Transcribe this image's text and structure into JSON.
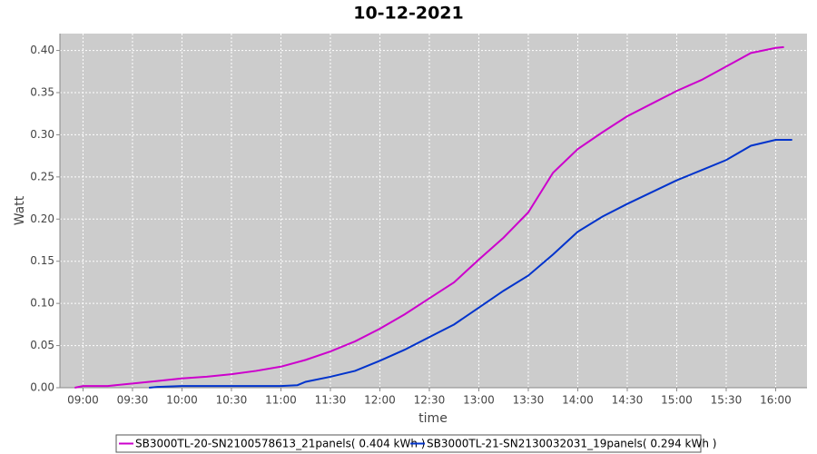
{
  "chart_data": {
    "type": "line",
    "title": "10-12-2021",
    "x_label": "time",
    "y_label": "Watt",
    "xlim": [
      "08:46",
      "16:19"
    ],
    "xticks": [
      "09:00",
      "09:30",
      "10:00",
      "10:30",
      "11:00",
      "11:30",
      "12:00",
      "12:30",
      "13:00",
      "13:30",
      "14:00",
      "14:30",
      "15:00",
      "15:30",
      "16:00"
    ],
    "ylim": [
      0,
      0.42
    ],
    "yticks": [
      {
        "value": 0,
        "label": "0.00"
      },
      {
        "value": 0.05,
        "label": "0.05"
      },
      {
        "value": 0.1,
        "label": "0.10"
      },
      {
        "value": 0.15,
        "label": "0.15"
      },
      {
        "value": 0.2,
        "label": "0.20"
      },
      {
        "value": 0.25,
        "label": "0.25"
      },
      {
        "value": 0.3,
        "label": "0.30"
      },
      {
        "value": 0.35,
        "label": "0.35"
      },
      {
        "value": 0.4,
        "label": "0.40"
      }
    ],
    "grid": true,
    "series": [
      {
        "name": "SB3000TL-20-SN2100578613_21panels( 0.404 kWh )",
        "color": "#cc00cc",
        "x": [
          "08:55",
          "09:00",
          "09:15",
          "09:30",
          "09:45",
          "10:00",
          "10:15",
          "10:30",
          "10:45",
          "11:00",
          "11:15",
          "11:30",
          "11:45",
          "12:00",
          "12:15",
          "12:30",
          "12:45",
          "13:00",
          "13:15",
          "13:30",
          "13:45",
          "14:00",
          "14:15",
          "14:30",
          "14:45",
          "15:00",
          "15:15",
          "15:30",
          "15:45",
          "16:00",
          "16:05"
        ],
        "values": [
          0,
          0.002,
          0.002,
          0.005,
          0.008,
          0.011,
          0.013,
          0.016,
          0.02,
          0.025,
          0.033,
          0.043,
          0.055,
          0.07,
          0.087,
          0.106,
          0.125,
          0.152,
          0.178,
          0.208,
          0.255,
          0.283,
          0.303,
          0.322,
          0.337,
          0.352,
          0.365,
          0.381,
          0.397,
          0.403,
          0.404
        ]
      },
      {
        "name": "SB3000TL-21-SN2130032031_19panels( 0.294 kWh )",
        "color": "#0033cc",
        "x": [
          "09:40",
          "09:45",
          "10:00",
          "10:30",
          "11:00",
          "11:10",
          "11:15",
          "11:30",
          "11:45",
          "12:00",
          "12:15",
          "12:30",
          "12:45",
          "13:00",
          "13:15",
          "13:30",
          "13:45",
          "14:00",
          "14:15",
          "14:30",
          "14:45",
          "15:00",
          "15:15",
          "15:30",
          "15:45",
          "16:00",
          "16:10"
        ],
        "values": [
          0,
          0.001,
          0.002,
          0.002,
          0.002,
          0.003,
          0.007,
          0.013,
          0.02,
          0.032,
          0.045,
          0.06,
          0.075,
          0.095,
          0.115,
          0.133,
          0.158,
          0.185,
          0.203,
          0.218,
          0.232,
          0.246,
          0.258,
          0.27,
          0.287,
          0.294,
          0.294
        ]
      }
    ]
  }
}
